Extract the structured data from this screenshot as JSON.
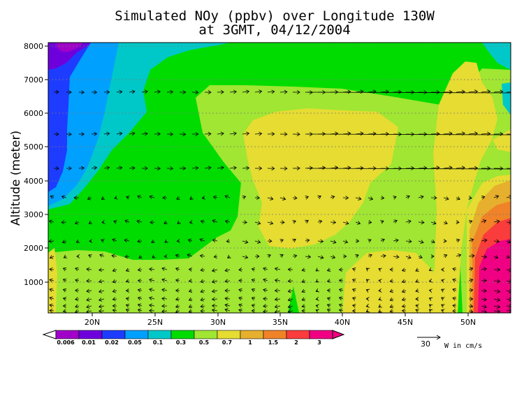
{
  "chart_data": {
    "type": "heatmap",
    "title": "Simulated NOy (ppbv) over Longitude 130W",
    "subtitle": "at 3GMT, 04/12/2004",
    "ylabel": "Altitude (meter)",
    "xlabel": "",
    "x_ticks": [
      "20N",
      "25N",
      "30N",
      "35N",
      "40N",
      "45N",
      "50N"
    ],
    "x_tick_values": [
      20,
      25,
      30,
      35,
      40,
      45,
      50
    ],
    "xlim": [
      16.5,
      53.5
    ],
    "y_ticks": [
      "1000",
      "2000",
      "3000",
      "4000",
      "5000",
      "6000",
      "7000",
      "8000"
    ],
    "y_tick_values": [
      1000,
      2000,
      3000,
      4000,
      5000,
      6000,
      7000,
      8000
    ],
    "ylim": [
      130,
      8100
    ],
    "grid": true,
    "colorbar": {
      "levels": [
        "0.006",
        "0.01",
        "0.02",
        "0.05",
        "0.1",
        "0.3",
        "0.5",
        "0.7",
        "1",
        "1.5",
        "2",
        "3"
      ],
      "colors": [
        "#a000c8",
        "#6e00dc",
        "#1e3cff",
        "#00a0ff",
        "#00c8c8",
        "#00dc00",
        "#a0e632",
        "#e6dc32",
        "#e6af2d",
        "#f08228",
        "#fa3c3c",
        "#f00082"
      ]
    },
    "vector_reference": {
      "magnitude": "30",
      "units": "W in cm/s"
    },
    "regions": [
      {
        "level": "0.5-0.7",
        "color": "#a0e632",
        "desc": "background"
      },
      {
        "level": "0.3-0.5",
        "color": "#00dc00"
      },
      {
        "level": "0.1-0.3",
        "color": "#00c8c8"
      },
      {
        "level": "0.05-0.1",
        "color": "#00a0ff"
      },
      {
        "level": "0.02-0.05",
        "color": "#1e3cff"
      },
      {
        "level": "0.006-0.01",
        "color": "#a000c8"
      },
      {
        "level": "0.7-1",
        "color": "#e6dc32"
      },
      {
        "level": "1-1.5",
        "color": "#e6af2d"
      },
      {
        "level": "1.5-2",
        "color": "#f08228"
      },
      {
        "level": "2-3",
        "color": "#fa3c3c"
      },
      {
        "level": ">3",
        "color": "#f00082"
      }
    ]
  }
}
